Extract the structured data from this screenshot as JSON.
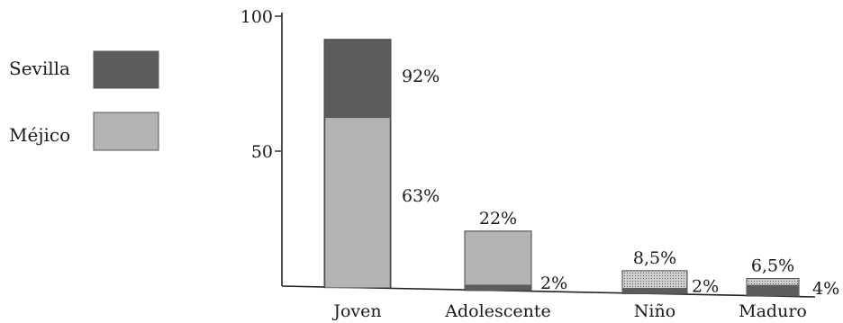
{
  "chart_data": {
    "type": "bar",
    "stacked": false,
    "overlapping_bars": true,
    "categories": [
      "Joven",
      "Adolescente",
      "Niño",
      "Maduro"
    ],
    "series": [
      {
        "name": "Sevilla",
        "color": "#5c5c5c",
        "values": [
          92,
          2,
          2,
          4
        ]
      },
      {
        "name": "Méjico",
        "color": "#b3b3b3",
        "values": [
          63,
          22,
          8.5,
          6.5
        ]
      }
    ],
    "data_labels": {
      "Sevilla": [
        "92%",
        "2%",
        "2%",
        "4%"
      ],
      "Méjico": [
        "63%",
        "22%",
        "8,5%",
        "6,5%"
      ]
    },
    "yticks": [
      {
        "value": 100,
        "label": "100"
      },
      {
        "value": 50,
        "label": "50"
      }
    ],
    "ylim": [
      0,
      100
    ],
    "grid": false,
    "legend_position": "left"
  }
}
